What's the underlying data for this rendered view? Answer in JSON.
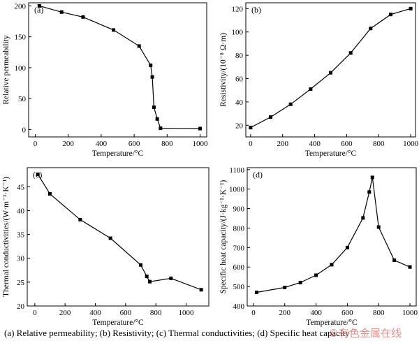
{
  "caption": "(a)  Relative  permeability; (b) Resistivity; (c) Thermal conductivities; (d) Specific heat capacity",
  "watermark": "©有色金属在线",
  "colors": {
    "line": "#000000",
    "marker": "#000000",
    "background": "#ffffff"
  },
  "chart_data": [
    {
      "type": "line",
      "panel_label": "(a)",
      "title": "",
      "xlabel": "Temperature/°C",
      "ylabel": "Relative permeability",
      "xlim": [
        -40,
        1040
      ],
      "ylim": [
        -12,
        205
      ],
      "xticks": [
        0,
        200,
        400,
        600,
        800,
        1000
      ],
      "yticks": [
        0,
        50,
        100,
        150,
        200
      ],
      "grid": false,
      "x": [
        25,
        160,
        290,
        475,
        630,
        700,
        710,
        720,
        740,
        760,
        1000
      ],
      "y": [
        200,
        190,
        182,
        161,
        135,
        104,
        85,
        36,
        17,
        2,
        1.5
      ]
    },
    {
      "type": "line",
      "panel_label": "(b)",
      "title": "",
      "xlabel": "Temperature/°C",
      "ylabel": "Resistivity/(10⁻⁸ Ω·m)",
      "xlim": [
        -30,
        1030
      ],
      "ylim": [
        10,
        125
      ],
      "xticks": [
        0,
        200,
        400,
        600,
        800,
        1000
      ],
      "yticks": [
        20,
        40,
        60,
        80,
        100,
        120
      ],
      "grid": false,
      "x": [
        0,
        125,
        250,
        375,
        500,
        625,
        750,
        875,
        1000
      ],
      "y": [
        18,
        27,
        38,
        51,
        65,
        82,
        103,
        115,
        120
      ]
    },
    {
      "type": "line",
      "panel_label": "(c)",
      "title": "",
      "xlabel": "Temperature/°C",
      "ylabel": "Thermal conductivities/(W·m⁻¹·K⁻¹)",
      "xlim": [
        -50,
        1150
      ],
      "ylim": [
        20,
        49
      ],
      "xticks": [
        0,
        200,
        400,
        600,
        800,
        1000
      ],
      "yticks": [
        20,
        25,
        30,
        35,
        40,
        45
      ],
      "grid": false,
      "x": [
        20,
        100,
        300,
        500,
        700,
        740,
        760,
        900,
        1100
      ],
      "y": [
        47.6,
        43.5,
        38.1,
        34.2,
        28.6,
        26.2,
        25.1,
        25.8,
        23.4
      ]
    },
    {
      "type": "line",
      "panel_label": "(d)",
      "title": "",
      "xlabel": "Temperature/°C",
      "ylabel": "Specific heat capacity/(J·kg⁻¹·K⁻¹)",
      "xlim": [
        -40,
        1040
      ],
      "ylim": [
        400,
        1110
      ],
      "xticks": [
        0,
        200,
        400,
        600,
        800,
        1000
      ],
      "yticks": [
        400,
        500,
        600,
        700,
        800,
        900,
        1000,
        1100
      ],
      "grid": false,
      "x": [
        20,
        200,
        300,
        400,
        500,
        600,
        700,
        740,
        760,
        800,
        900,
        1000
      ],
      "y": [
        470,
        495,
        520,
        558,
        612,
        700,
        852,
        985,
        1060,
        805,
        635,
        600
      ]
    }
  ]
}
